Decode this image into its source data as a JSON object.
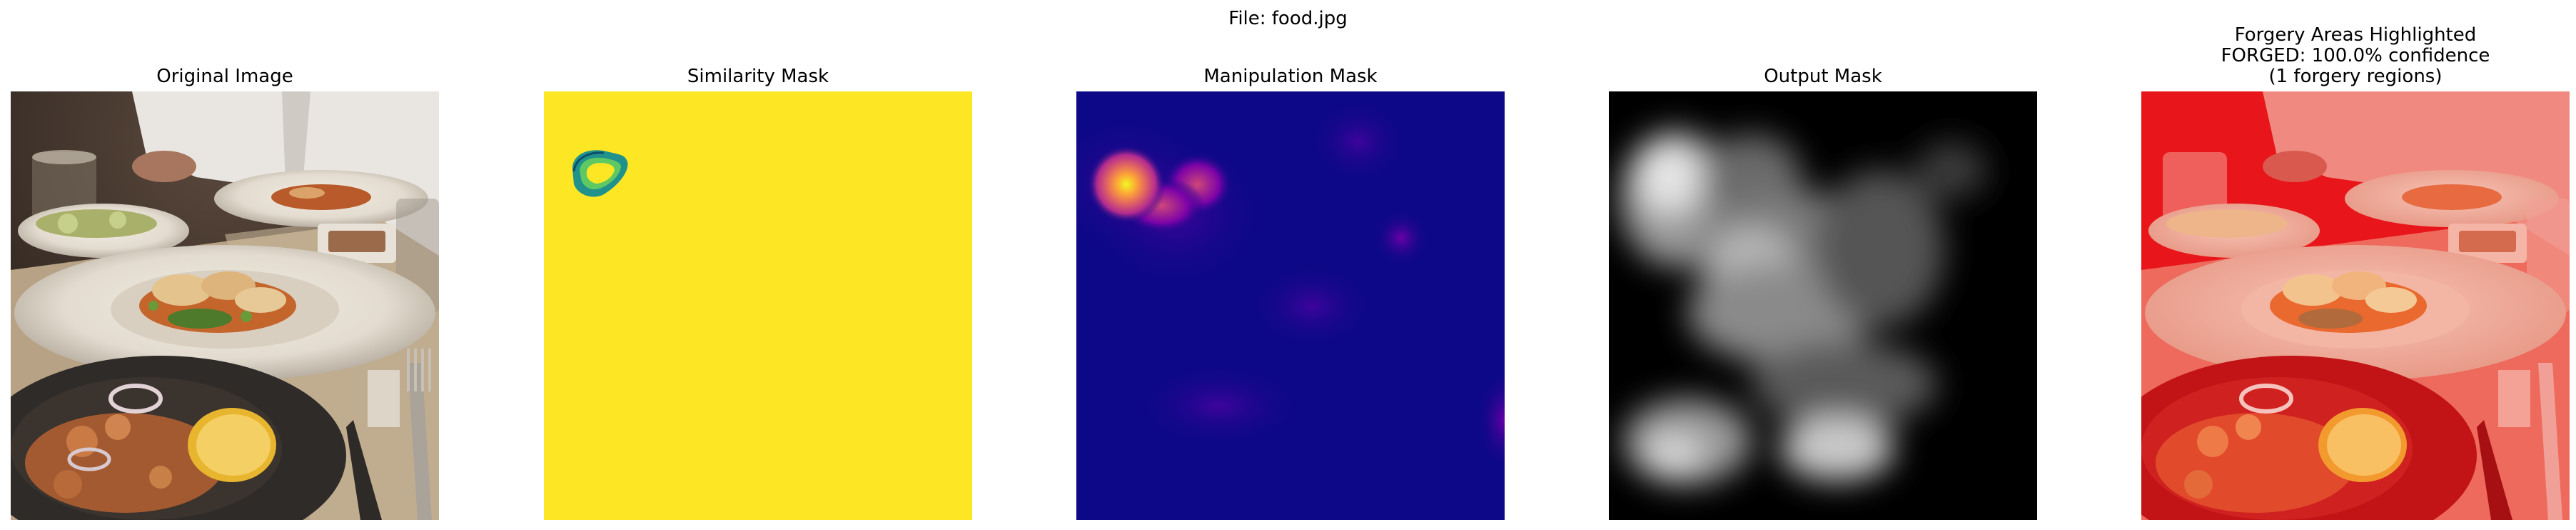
{
  "figure": {
    "suptitle": "File: food.jpg"
  },
  "panels": [
    {
      "title": "Original Image"
    },
    {
      "title": "Similarity Mask"
    },
    {
      "title": "Manipulation Mask"
    },
    {
      "title": "Output Mask"
    },
    {
      "title": "Forgery Areas Highlighted\nFORGED: 100.0% confidence\n(1 forgery regions)"
    }
  ],
  "colors": {
    "similarity_bg": "#FDE725",
    "similarity_edge": "#21918C",
    "manipulation_bg": "#0D0887",
    "manipulation_hot": "#F0F921",
    "output_bg": "#000000",
    "highlight_red": "#E8161A"
  }
}
